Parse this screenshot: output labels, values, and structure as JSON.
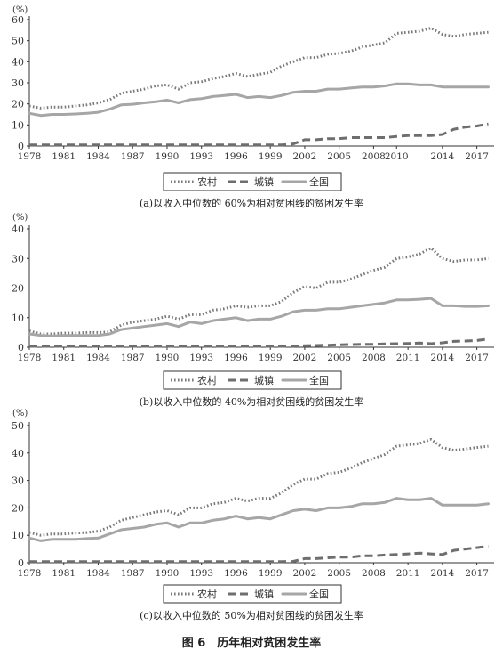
{
  "figure_title": "图 6　历年相对贫困发生率",
  "chart_data": [
    {
      "type": "line",
      "unit_label": "(%)",
      "caption": "(a)以收入中位数的 60%为相对贫困线的贫困发生率",
      "ylim": [
        0,
        60
      ],
      "yticks": [
        0,
        10,
        20,
        30,
        40,
        50,
        60
      ],
      "xlim": [
        1978,
        2018.5
      ],
      "xticks": [
        1978,
        1981,
        1984,
        1987,
        1990,
        1993,
        1996,
        1999,
        2002,
        2005,
        2008,
        2010,
        2014,
        2017
      ],
      "legend_position": "bottom-center",
      "legend": [
        "农村",
        "城镇",
        "全国"
      ],
      "x": [
        1978,
        1979,
        1980,
        1981,
        1982,
        1983,
        1984,
        1985,
        1986,
        1987,
        1988,
        1989,
        1990,
        1991,
        1992,
        1993,
        1994,
        1995,
        1996,
        1997,
        1998,
        1999,
        2000,
        2001,
        2002,
        2003,
        2004,
        2005,
        2006,
        2007,
        2008,
        2009,
        2010,
        2011,
        2012,
        2013,
        2014,
        2015,
        2016,
        2017,
        2018
      ],
      "series": [
        {
          "name": "农村",
          "style": "dotted",
          "values": [
            19,
            18,
            18.5,
            18.5,
            19,
            19.5,
            20.5,
            22,
            25,
            26,
            27,
            28.5,
            29,
            27,
            30,
            30.5,
            32,
            33,
            34.5,
            33,
            34,
            35,
            38,
            40,
            42,
            42,
            43.5,
            44,
            45,
            47,
            48,
            49,
            53.5,
            54,
            54.5,
            56,
            53,
            52,
            53,
            53.5,
            54
          ]
        },
        {
          "name": "城镇",
          "style": "dashed",
          "values": [
            0.5,
            0.5,
            0.5,
            0.5,
            0.5,
            0.5,
            0.5,
            0.5,
            0.5,
            0.5,
            0.5,
            0.5,
            0.5,
            0.5,
            0.5,
            0.5,
            0.5,
            0.5,
            0.5,
            0.5,
            0.5,
            0.5,
            0.5,
            1,
            3,
            3,
            3.5,
            3.5,
            4,
            4,
            4,
            4,
            4.5,
            5,
            5,
            5,
            5.5,
            8,
            9,
            9.5,
            10.5
          ]
        },
        {
          "name": "全国",
          "style": "solid",
          "values": [
            15.5,
            14.5,
            15,
            15,
            15.2,
            15.5,
            16,
            17.5,
            19.5,
            19.8,
            20.5,
            21,
            21.8,
            20.5,
            22,
            22.5,
            23.5,
            24,
            24.5,
            23,
            23.5,
            23,
            24,
            25.5,
            26,
            26,
            27,
            27,
            27.5,
            28,
            28,
            28.5,
            29.5,
            29.5,
            29,
            29,
            28,
            28,
            28,
            28,
            28
          ]
        }
      ]
    },
    {
      "type": "line",
      "unit_label": "(%)",
      "caption": "(b)以收入中位数的 40%为相对贫困线的贫困发生率",
      "ylim": [
        0,
        40
      ],
      "yticks": [
        0,
        10,
        20,
        30,
        40
      ],
      "xlim": [
        1978,
        2018.5
      ],
      "xticks": [
        1978,
        1981,
        1984,
        1987,
        1990,
        1993,
        1996,
        1999,
        2002,
        2005,
        2008,
        2011,
        2014,
        2017
      ],
      "legend_position": "bottom-center",
      "legend": [
        "农村",
        "城镇",
        "全国"
      ],
      "x": [
        1978,
        1979,
        1980,
        1981,
        1982,
        1983,
        1984,
        1985,
        1986,
        1987,
        1988,
        1989,
        1990,
        1991,
        1992,
        1993,
        1994,
        1995,
        1996,
        1997,
        1998,
        1999,
        2000,
        2001,
        2002,
        2003,
        2004,
        2005,
        2006,
        2007,
        2008,
        2009,
        2010,
        2011,
        2012,
        2013,
        2014,
        2015,
        2016,
        2017,
        2018
      ],
      "series": [
        {
          "name": "农村",
          "style": "dotted",
          "values": [
            5.5,
            4.5,
            4.5,
            4.8,
            4.8,
            5,
            5,
            5.2,
            7.5,
            8.5,
            9,
            9.5,
            10.5,
            9.5,
            11,
            11,
            12.5,
            13,
            14,
            13.5,
            14,
            14,
            15.5,
            18.5,
            20.5,
            20,
            22,
            22,
            23,
            24.5,
            26,
            27,
            30,
            30.5,
            31.5,
            33.5,
            30,
            29,
            29.5,
            29.5,
            30
          ]
        },
        {
          "name": "城镇",
          "style": "dashed",
          "values": [
            0.3,
            0.3,
            0.3,
            0.3,
            0.3,
            0.3,
            0.3,
            0.3,
            0.3,
            0.3,
            0.3,
            0.3,
            0.3,
            0.3,
            0.3,
            0.3,
            0.3,
            0.3,
            0.3,
            0.3,
            0.3,
            0.3,
            0.3,
            0.4,
            0.5,
            0.6,
            0.7,
            0.8,
            0.9,
            1,
            1,
            1.1,
            1.2,
            1.3,
            1.4,
            1.2,
            1.5,
            2,
            2.1,
            2.3,
            2.8
          ]
        },
        {
          "name": "全国",
          "style": "solid",
          "values": [
            4.5,
            4,
            3.8,
            4,
            4,
            4,
            4,
            4.5,
            6,
            6.5,
            7,
            7.5,
            8,
            7,
            8.5,
            8,
            9,
            9.5,
            10,
            9,
            9.5,
            9.5,
            10.5,
            12,
            12.5,
            12.5,
            13,
            13,
            13.5,
            14,
            14.5,
            15,
            16,
            16,
            16.2,
            16.5,
            14,
            14,
            13.8,
            13.8,
            14
          ]
        }
      ]
    },
    {
      "type": "line",
      "unit_label": "(%)",
      "caption": "(c)以收入中位数的 50%为相对贫困线的贫困发生率",
      "ylim": [
        0,
        50
      ],
      "yticks": [
        0,
        10,
        20,
        30,
        40,
        50
      ],
      "xlim": [
        1978,
        2018.5
      ],
      "xticks": [
        1978,
        1981,
        1984,
        1987,
        1990,
        1993,
        1996,
        1999,
        2002,
        2005,
        2008,
        2011,
        2014,
        2017
      ],
      "legend_position": "bottom-center",
      "legend": [
        "农村",
        "城镇",
        "全国"
      ],
      "x": [
        1978,
        1979,
        1980,
        1981,
        1982,
        1983,
        1984,
        1985,
        1986,
        1987,
        1988,
        1989,
        1990,
        1991,
        1992,
        1993,
        1994,
        1995,
        1996,
        1997,
        1998,
        1999,
        2000,
        2001,
        2002,
        2003,
        2004,
        2005,
        2006,
        2007,
        2008,
        2009,
        2010,
        2011,
        2012,
        2013,
        2014,
        2015,
        2016,
        2017,
        2018
      ],
      "series": [
        {
          "name": "农村",
          "style": "dotted",
          "values": [
            11,
            10,
            10.5,
            10.5,
            10.8,
            11,
            11.5,
            13,
            15.5,
            16.5,
            17.5,
            18.5,
            19,
            17.5,
            20,
            20,
            21.5,
            22,
            23.5,
            22.5,
            23.5,
            23.5,
            25.5,
            28.5,
            30.5,
            30.5,
            32.5,
            33,
            34.5,
            36.5,
            38,
            39.5,
            42.5,
            43,
            43.5,
            45,
            42,
            41,
            41.5,
            42,
            42.5
          ]
        },
        {
          "name": "城镇",
          "style": "dashed",
          "values": [
            0.4,
            0.4,
            0.4,
            0.4,
            0.4,
            0.4,
            0.4,
            0.4,
            0.4,
            0.4,
            0.4,
            0.4,
            0.4,
            0.4,
            0.4,
            0.4,
            0.4,
            0.4,
            0.4,
            0.4,
            0.4,
            0.4,
            0.4,
            0.5,
            1.5,
            1.5,
            1.8,
            2,
            2,
            2.5,
            2.5,
            2.8,
            3,
            3.2,
            3.5,
            3.2,
            3,
            4.5,
            5,
            5.5,
            6
          ]
        },
        {
          "name": "全国",
          "style": "solid",
          "values": [
            9,
            8,
            8.5,
            8.5,
            8.5,
            8.8,
            9,
            10.5,
            12,
            12.5,
            13,
            14,
            14.5,
            13,
            14.5,
            14.5,
            15.5,
            16,
            17,
            16,
            16.5,
            16,
            17.5,
            19,
            19.5,
            19,
            20,
            20,
            20.5,
            21.5,
            21.5,
            22,
            23.5,
            23,
            23,
            23.5,
            21,
            21,
            21,
            21,
            21.5
          ]
        }
      ]
    }
  ]
}
